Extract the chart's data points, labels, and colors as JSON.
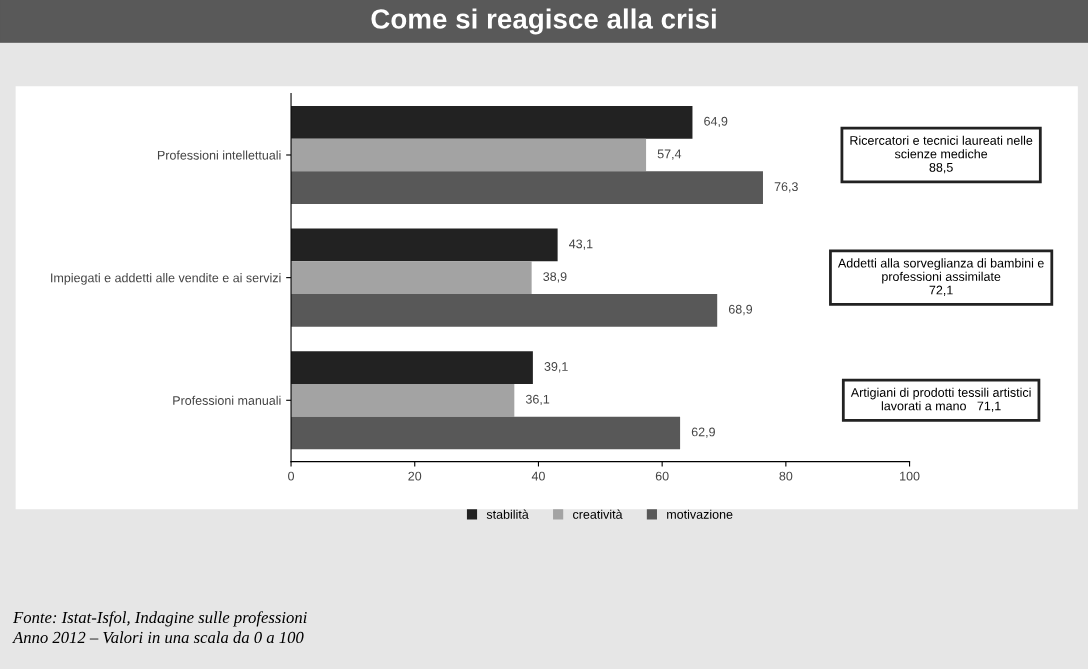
{
  "chart_data": {
    "type": "bar",
    "orientation": "horizontal",
    "title": "Come si reagisce alla crisi",
    "categories": [
      "Professioni intellettuali",
      "Impiegati e addetti alle vendite e ai servizi",
      "Professioni manuali"
    ],
    "series": [
      {
        "name": "stabilità",
        "color": "#222222",
        "values": [
          64.9,
          43.1,
          39.1
        ],
        "value_labels": [
          "64,9",
          "43,1",
          "39,1"
        ]
      },
      {
        "name": "creatività",
        "color": "#a3a3a3",
        "values": [
          57.4,
          38.9,
          36.1
        ],
        "value_labels": [
          "57,4",
          "38,9",
          "36,1"
        ]
      },
      {
        "name": "motivazione",
        "color": "#585858",
        "values": [
          76.3,
          68.9,
          62.9
        ],
        "value_labels": [
          "76,3",
          "68,9",
          "62,9"
        ]
      }
    ],
    "xlim": [
      0,
      100
    ],
    "xticks": [
      0,
      20,
      40,
      60,
      80,
      100
    ],
    "grid": false,
    "legend": "bottom",
    "annotations": [
      "Ricercatori e tecnici laureati nelle\nscienze mediche\n88,5",
      "Addetti alla sorveglianza di bambini e\nprofessioni assimilate\n72,1",
      "Artigiani di prodotti tessili artistici\nlavorati a mano   71,1",
      "Fonte: Istat-Isfol, Indagine sulle professioni",
      "Anno 2012 – Valori in una scala da 0 a 100"
    ]
  }
}
